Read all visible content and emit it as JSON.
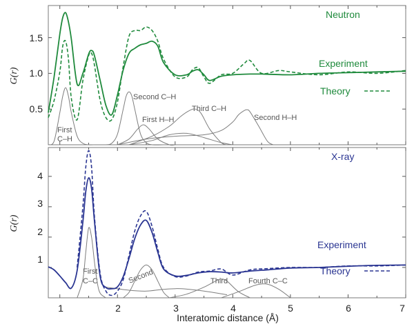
{
  "chart_data": [
    {
      "type": "line",
      "title": "Neutron",
      "ylabel": "G(r)",
      "xlabel": "",
      "xlim": [
        0.8,
        7
      ],
      "ylim": [
        0,
        1.95
      ],
      "y_ticks": [
        "0.5",
        "1.0",
        "1.5"
      ],
      "legend": [
        "Experiment",
        "Theory"
      ],
      "colors": {
        "main": "#1f8a3c",
        "partial": "#7d7d7d"
      },
      "annotations": [
        {
          "text": "First",
          "x": 0.88,
          "y": 0.14
        },
        {
          "text": "C–H",
          "x": 0.88,
          "y": 0.02
        },
        {
          "text": "Second C–H",
          "x": 2.25,
          "y": 0.68
        },
        {
          "text": "First H–H",
          "x": 2.38,
          "y": 0.32
        },
        {
          "text": "Third C–H",
          "x": 3.1,
          "y": 0.48
        },
        {
          "text": "Second H–H",
          "x": 4.7,
          "y": 0.34
        }
      ],
      "series": [
        {
          "name": "Experiment",
          "style": "solid",
          "x": [
            0.8,
            0.9,
            1.0,
            1.05,
            1.1,
            1.15,
            1.2,
            1.3,
            1.4,
            1.5,
            1.55,
            1.6,
            1.7,
            1.8,
            1.9,
            2.0,
            2.1,
            2.2,
            2.3,
            2.4,
            2.5,
            2.6,
            2.7,
            2.8,
            3.0,
            3.2,
            3.3,
            3.4,
            3.5,
            3.6,
            3.8,
            4.0,
            4.3,
            4.5,
            5.0,
            5.5,
            6.0,
            6.5,
            7.0
          ],
          "y": [
            0.45,
            0.95,
            1.55,
            1.78,
            1.85,
            1.72,
            1.48,
            0.85,
            1.0,
            1.27,
            1.32,
            1.25,
            0.9,
            0.55,
            0.42,
            0.7,
            1.05,
            1.28,
            1.35,
            1.4,
            1.42,
            1.45,
            1.38,
            1.15,
            0.98,
            0.98,
            1.03,
            1.05,
            0.98,
            0.9,
            0.96,
            0.98,
            0.99,
            0.99,
            0.98,
            1.0,
            1.01,
            1.02,
            1.03
          ]
        },
        {
          "name": "Theory",
          "style": "dashed",
          "x": [
            0.8,
            0.9,
            1.0,
            1.05,
            1.1,
            1.15,
            1.2,
            1.3,
            1.4,
            1.5,
            1.55,
            1.6,
            1.7,
            1.8,
            1.9,
            2.0,
            2.1,
            2.2,
            2.3,
            2.4,
            2.5,
            2.6,
            2.7,
            2.8,
            3.0,
            3.2,
            3.3,
            3.4,
            3.5,
            3.6,
            3.8,
            4.0,
            4.2,
            4.3,
            4.5,
            4.8,
            5.0,
            5.5,
            6.0,
            6.5,
            7.0
          ],
          "y": [
            0.38,
            0.62,
            1.02,
            1.38,
            1.45,
            1.2,
            0.65,
            0.35,
            0.9,
            1.25,
            1.28,
            1.12,
            0.62,
            0.38,
            0.35,
            0.6,
            1.1,
            1.52,
            1.6,
            1.6,
            1.65,
            1.6,
            1.45,
            1.2,
            0.95,
            0.95,
            1.05,
            1.08,
            0.95,
            0.86,
            0.98,
            1.0,
            1.14,
            1.18,
            1.0,
            1.04,
            1.02,
            0.98,
            1.02,
            1.0,
            1.04
          ]
        },
        {
          "name": "",
          "style": "partial",
          "x": [
            0.8,
            0.9,
            1.0,
            1.05,
            1.1,
            1.15,
            1.2,
            1.3,
            1.4,
            1.5,
            1.6
          ],
          "y": [
            0,
            0.05,
            0.45,
            0.68,
            0.8,
            0.68,
            0.45,
            0.12,
            0.02,
            0,
            0
          ]
        },
        {
          "name": "",
          "style": "partial",
          "x": [
            1.8,
            1.9,
            2.0,
            2.1,
            2.15,
            2.2,
            2.25,
            2.3,
            2.4,
            2.5,
            2.6,
            2.8
          ],
          "y": [
            0,
            0.02,
            0.15,
            0.5,
            0.68,
            0.74,
            0.68,
            0.5,
            0.15,
            0.03,
            0,
            0
          ]
        },
        {
          "name": "",
          "style": "partial",
          "x": [
            2.0,
            2.2,
            2.35,
            2.45,
            2.55,
            2.7,
            2.9,
            3.0
          ],
          "y": [
            0,
            0.08,
            0.22,
            0.28,
            0.22,
            0.08,
            0,
            0
          ]
        },
        {
          "name": "",
          "style": "partial",
          "x": [
            2.2,
            2.6,
            2.9,
            3.1,
            3.25,
            3.35,
            3.45,
            3.6,
            3.8,
            3.9
          ],
          "y": [
            0,
            0.12,
            0.26,
            0.4,
            0.48,
            0.5,
            0.44,
            0.22,
            0.03,
            0
          ]
        },
        {
          "name": "",
          "style": "partial",
          "x": [
            2.0,
            2.5,
            3.0,
            3.5,
            3.8,
            4.0,
            4.1,
            4.2,
            4.25,
            4.3,
            4.45,
            4.6,
            4.7
          ],
          "y": [
            0,
            0.08,
            0.12,
            0.14,
            0.2,
            0.32,
            0.42,
            0.48,
            0.49,
            0.46,
            0.26,
            0.05,
            0
          ]
        },
        {
          "name": "",
          "style": "partial",
          "x": [
            2.2,
            2.6,
            2.9,
            3.2,
            3.5,
            3.8,
            4.0
          ],
          "y": [
            0,
            0.06,
            0.14,
            0.16,
            0.1,
            0.03,
            0
          ]
        }
      ]
    },
    {
      "type": "line",
      "title": "X-ray",
      "ylabel": "G(r)",
      "xlabel": "Interatomic distance (Å)",
      "xlim": [
        0.8,
        7
      ],
      "ylim": [
        0,
        4.95
      ],
      "x_ticks": [
        "1",
        "2",
        "3",
        "4",
        "5",
        "6",
        "7"
      ],
      "y_ticks": [
        "1",
        "2",
        "3",
        "4"
      ],
      "legend": [
        "Experiment",
        "Theory"
      ],
      "colors": {
        "main": "#2a3592",
        "partial": "#7d7d7d"
      },
      "annotations": [
        {
          "text": "First",
          "x": 1.25,
          "y": 0.55
        },
        {
          "text": "C–C",
          "x": 1.25,
          "y": 0.18
        },
        {
          "text": "Second",
          "x": 2.1,
          "y": 0.28
        },
        {
          "text": "Third",
          "x": 3.3,
          "y": 0.15
        },
        {
          "text": "Fourth C–C",
          "x": 4.2,
          "y": 0.2
        }
      ],
      "series": [
        {
          "name": "Experiment",
          "style": "solid",
          "x": [
            0.8,
            0.9,
            1.0,
            1.1,
            1.2,
            1.3,
            1.4,
            1.45,
            1.5,
            1.55,
            1.6,
            1.7,
            1.8,
            1.9,
            2.0,
            2.1,
            2.2,
            2.3,
            2.4,
            2.5,
            2.6,
            2.7,
            2.8,
            3.0,
            3.2,
            3.4,
            3.6,
            3.8,
            4.0,
            4.3,
            4.6,
            5.0,
            5.5,
            6.0,
            6.5,
            7.0
          ],
          "y": [
            1.02,
            0.92,
            0.72,
            0.5,
            0.32,
            0.9,
            2.5,
            3.5,
            3.95,
            3.6,
            2.55,
            0.7,
            0.34,
            0.3,
            0.36,
            0.7,
            1.3,
            1.95,
            2.4,
            2.55,
            2.15,
            1.5,
            0.95,
            0.72,
            0.74,
            0.82,
            0.86,
            0.85,
            0.82,
            0.88,
            0.92,
            0.98,
            1.0,
            1.04,
            1.07,
            1.08
          ]
        },
        {
          "name": "Theory",
          "style": "dashed",
          "x": [
            1.3,
            1.4,
            1.45,
            1.5,
            1.55,
            1.6,
            1.7,
            1.8,
            1.9,
            2.0,
            2.1,
            2.2,
            2.3,
            2.4,
            2.5,
            2.6,
            2.7,
            2.8,
            3.0,
            3.2,
            3.4,
            3.6,
            3.8,
            4.0,
            4.3,
            4.6,
            5.0,
            5.5,
            6.0,
            6.5,
            7.0
          ],
          "y": [
            1.0,
            3.0,
            4.3,
            4.85,
            4.3,
            2.7,
            0.8,
            0.22,
            0.08,
            0.22,
            0.6,
            1.4,
            2.2,
            2.7,
            2.85,
            2.35,
            1.6,
            1.0,
            0.7,
            0.72,
            0.85,
            0.88,
            0.95,
            0.75,
            0.92,
            0.96,
            1.0,
            1.0,
            1.05,
            1.05,
            1.08
          ]
        },
        {
          "name": "",
          "style": "partial",
          "x": [
            1.3,
            1.4,
            1.45,
            1.5,
            1.55,
            1.6,
            1.65,
            1.7,
            1.8
          ],
          "y": [
            0,
            0.6,
            1.5,
            2.3,
            2.0,
            1.2,
            0.5,
            0.15,
            0
          ]
        },
        {
          "name": "",
          "style": "partial",
          "x": [
            2.1,
            2.2,
            2.3,
            2.4,
            2.5,
            2.6,
            2.7,
            2.8,
            2.9
          ],
          "y": [
            0,
            0.18,
            0.55,
            0.92,
            1.08,
            0.92,
            0.55,
            0.18,
            0
          ]
        },
        {
          "name": "",
          "style": "partial",
          "x": [
            2.9,
            3.2,
            3.5,
            3.7,
            3.8,
            3.9,
            4.1,
            4.3
          ],
          "y": [
            0,
            0.12,
            0.35,
            0.55,
            0.62,
            0.55,
            0.2,
            0
          ]
        },
        {
          "name": "",
          "style": "partial",
          "x": [
            3.8,
            4.1,
            4.4,
            4.6,
            4.8,
            5.0
          ],
          "y": [
            0,
            0.2,
            0.42,
            0.45,
            0.28,
            0
          ]
        },
        {
          "name": "",
          "style": "partial",
          "x": [
            1.8,
            2.2,
            2.5,
            2.8,
            3.1,
            3.5,
            3.9
          ],
          "y": [
            0.35,
            0.25,
            0.22,
            0.28,
            0.3,
            0.22,
            0.1
          ]
        }
      ]
    }
  ]
}
